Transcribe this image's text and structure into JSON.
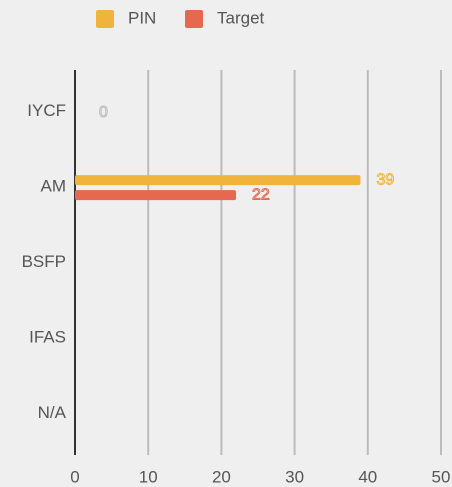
{
  "chart_data": {
    "type": "hbar",
    "categories": [
      "IYCF",
      "AM",
      "BSFP",
      "IFAS",
      "N/A"
    ],
    "series": [
      {
        "name": "PIN",
        "color": "#f0b43c",
        "values": [
          0,
          39,
          null,
          null,
          null
        ]
      },
      {
        "name": "Target",
        "color": "#e5684f",
        "values": [
          null,
          22,
          null,
          null,
          null
        ]
      }
    ],
    "xlim": [
      0,
      50
    ],
    "xticks": [
      0,
      10,
      20,
      30,
      40,
      50
    ],
    "grid": true
  }
}
